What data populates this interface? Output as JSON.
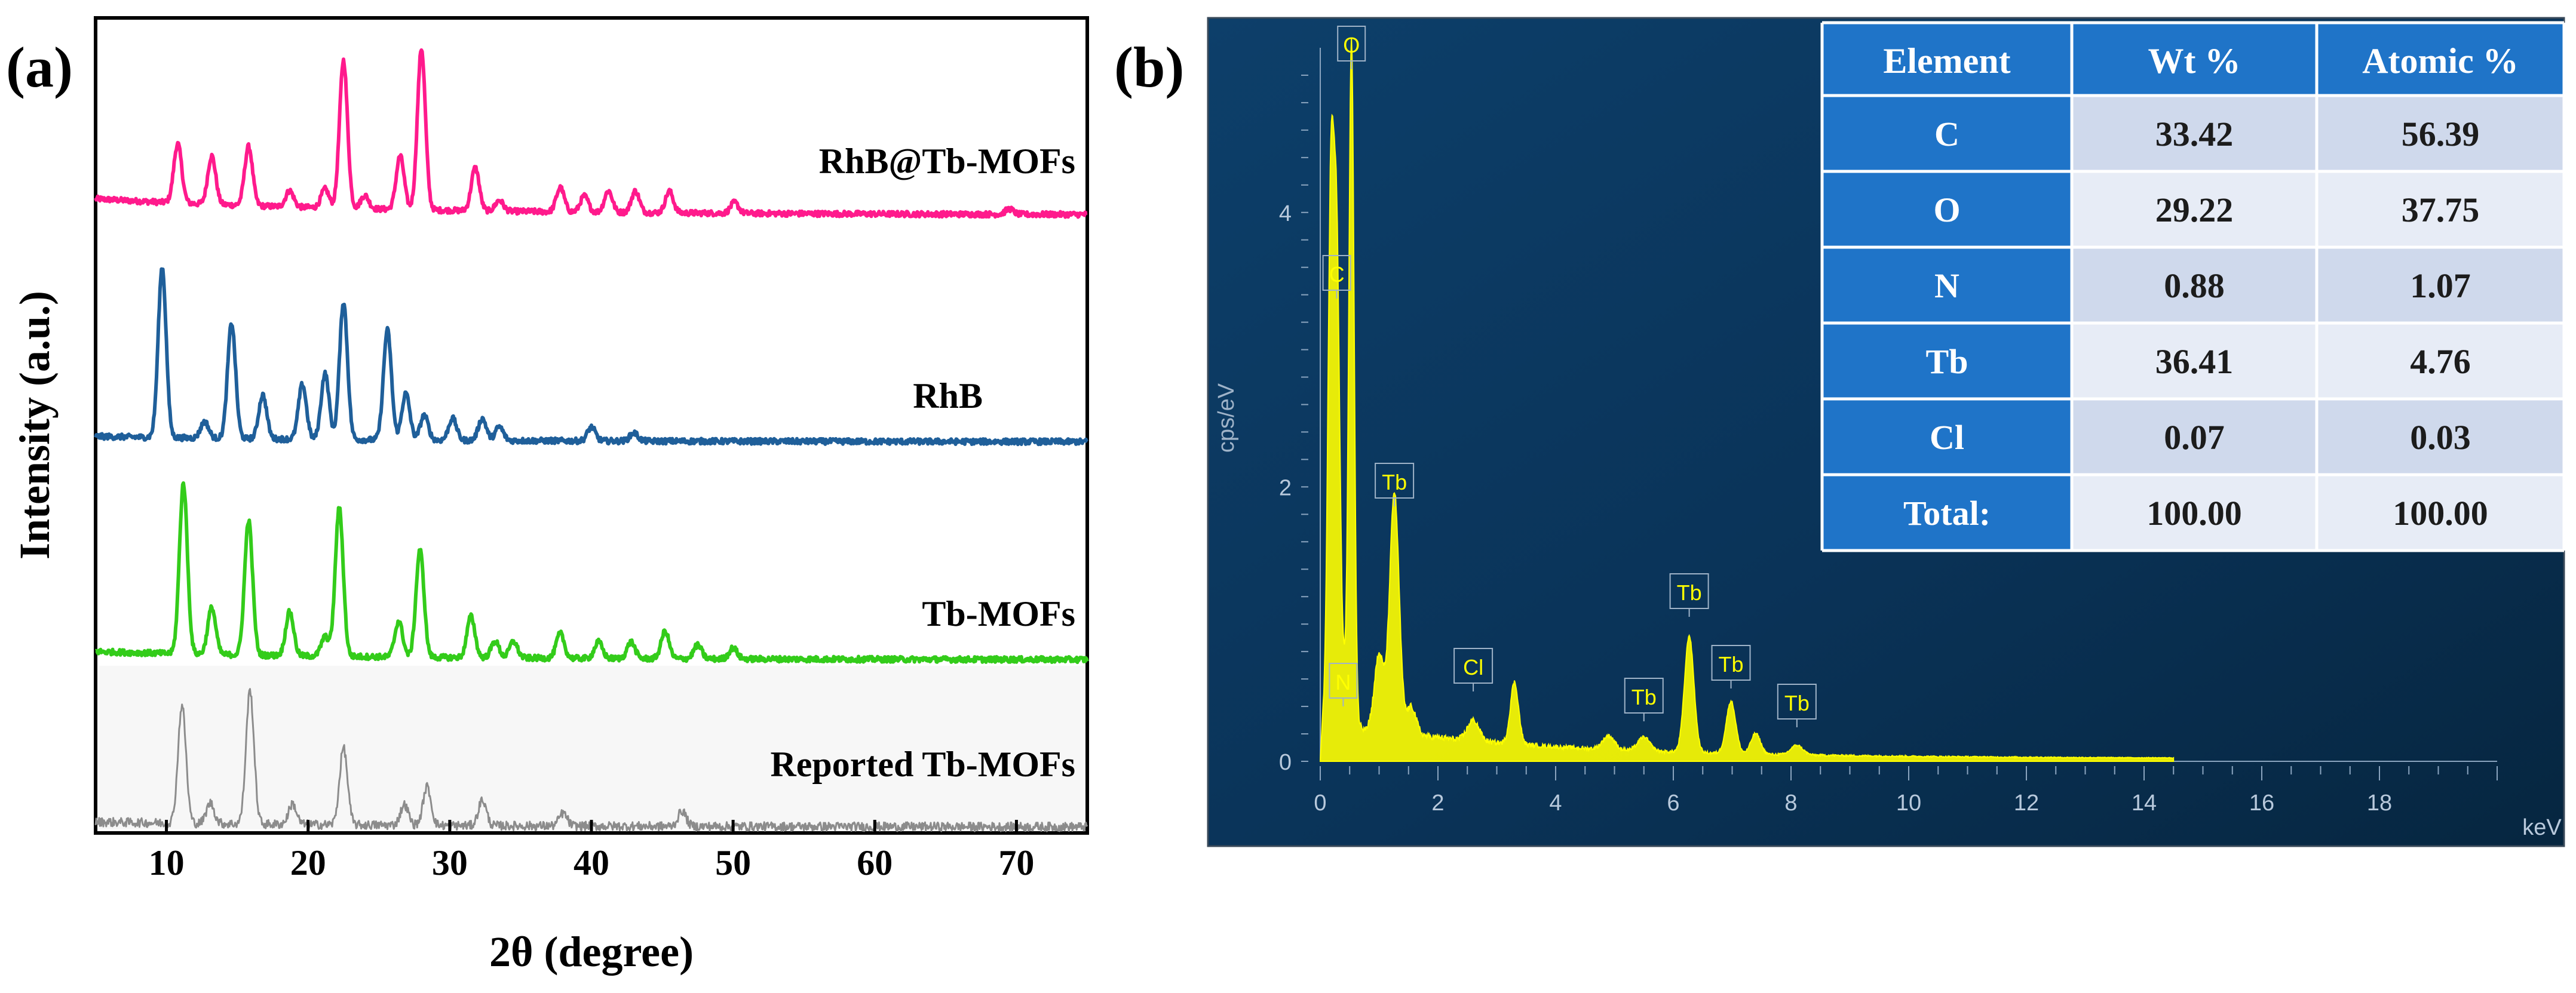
{
  "panel_a": {
    "label": "(a)"
  },
  "panel_b": {
    "label": "(b)"
  },
  "chart_data": [
    {
      "type": "line",
      "title": "",
      "xlabel": "2θ (degree)",
      "ylabel": "Intensity (a.u.)",
      "xlim": [
        5,
        75
      ],
      "xticks": [
        10,
        20,
        30,
        40,
        50,
        60,
        70
      ],
      "yticks": [],
      "series": [
        {
          "name": "RhB@Tb-MOFs",
          "color": "#ff1a8c",
          "baseline": 0.06,
          "peaks": [
            [
              10.8,
              0.22
            ],
            [
              13.2,
              0.18
            ],
            [
              15.8,
              0.22
            ],
            [
              18.7,
              0.06
            ],
            [
              21.2,
              0.07
            ],
            [
              22.5,
              0.55
            ],
            [
              24.0,
              0.05
            ],
            [
              26.5,
              0.2
            ],
            [
              28.0,
              0.6
            ],
            [
              31.8,
              0.16
            ],
            [
              33.5,
              0.04
            ],
            [
              37.8,
              0.09
            ],
            [
              39.5,
              0.06
            ],
            [
              41.2,
              0.08
            ],
            [
              43.1,
              0.08
            ],
            [
              45.5,
              0.08
            ],
            [
              50.1,
              0.04
            ],
            [
              69.5,
              0.02
            ]
          ]
        },
        {
          "name": "RhB",
          "color": "#1f5f9a",
          "baseline": 0.02,
          "peaks": [
            [
              9.7,
              0.62
            ],
            [
              12.7,
              0.06
            ],
            [
              14.6,
              0.42
            ],
            [
              16.8,
              0.16
            ],
            [
              19.6,
              0.2
            ],
            [
              21.2,
              0.24
            ],
            [
              22.5,
              0.5
            ],
            [
              25.6,
              0.4
            ],
            [
              26.9,
              0.17
            ],
            [
              28.2,
              0.09
            ],
            [
              30.2,
              0.08
            ],
            [
              32.3,
              0.08
            ],
            [
              33.5,
              0.05
            ],
            [
              40.0,
              0.05
            ],
            [
              43.0,
              0.03
            ]
          ]
        },
        {
          "name": "Tb-MOFs",
          "color": "#33cc1a",
          "baseline": 0.03,
          "peaks": [
            [
              11.2,
              0.62
            ],
            [
              13.2,
              0.17
            ],
            [
              15.8,
              0.49
            ],
            [
              18.7,
              0.16
            ],
            [
              21.2,
              0.07
            ],
            [
              22.2,
              0.54
            ],
            [
              26.4,
              0.13
            ],
            [
              27.9,
              0.39
            ],
            [
              31.5,
              0.15
            ],
            [
              33.2,
              0.06
            ],
            [
              34.5,
              0.06
            ],
            [
              37.8,
              0.09
            ],
            [
              40.5,
              0.06
            ],
            [
              42.8,
              0.06
            ],
            [
              45.2,
              0.1
            ],
            [
              47.5,
              0.05
            ],
            [
              50.0,
              0.04
            ]
          ]
        },
        {
          "name": "Reported Tb-MOFs",
          "color": "#8c8c8c",
          "baseline": 0.02,
          "peaks": [
            [
              11.1,
              0.46
            ],
            [
              13.1,
              0.08
            ],
            [
              15.9,
              0.52
            ],
            [
              18.9,
              0.08
            ],
            [
              22.5,
              0.3
            ],
            [
              26.8,
              0.08
            ],
            [
              28.4,
              0.15
            ],
            [
              32.3,
              0.1
            ],
            [
              38.0,
              0.05
            ],
            [
              46.4,
              0.06
            ]
          ]
        }
      ]
    },
    {
      "type": "line",
      "title": "",
      "xlabel": "keV",
      "ylabel": "cps/eV",
      "xlim": [
        0,
        20
      ],
      "ylim": [
        0,
        5.2
      ],
      "xticks": [
        0,
        2,
        4,
        6,
        8,
        10,
        12,
        14,
        16,
        18
      ],
      "yticks": [
        0,
        2,
        4
      ],
      "spectrum_color": "#ffff00",
      "peaks": [
        [
          0.18,
          3.8,
          0.05
        ],
        [
          0.28,
          3.3,
          0.05
        ],
        [
          0.39,
          0.35,
          0.05
        ],
        [
          0.53,
          5.0,
          0.045
        ],
        [
          1.0,
          0.55,
          0.08
        ],
        [
          1.26,
          1.75,
          0.08
        ],
        [
          1.55,
          0.2,
          0.08
        ],
        [
          2.6,
          0.15,
          0.1
        ],
        [
          3.3,
          0.45,
          0.07
        ],
        [
          4.9,
          0.1,
          0.1
        ],
        [
          5.5,
          0.1,
          0.1
        ],
        [
          6.27,
          0.85,
          0.08
        ],
        [
          6.98,
          0.38,
          0.08
        ],
        [
          7.4,
          0.15,
          0.08
        ],
        [
          8.1,
          0.07,
          0.1
        ]
      ],
      "peak_labels": [
        {
          "text": "O",
          "energy": 0.53
        },
        {
          "text": "C",
          "energy": 0.28
        },
        {
          "text": "N",
          "energy": 0.39
        },
        {
          "text": "Tb",
          "energy": 1.26
        },
        {
          "text": "Cl",
          "energy": 2.6
        },
        {
          "text": "Tb",
          "energy": 5.5
        },
        {
          "text": "Tb",
          "energy": 6.27
        },
        {
          "text": "Tb",
          "energy": 6.98
        },
        {
          "text": "Tb",
          "energy": 8.1
        }
      ]
    },
    {
      "type": "table",
      "columns": [
        "Element",
        "Wt %",
        "Atomic %"
      ],
      "rows": [
        [
          "C",
          "33.42",
          "56.39"
        ],
        [
          "O",
          "29.22",
          "37.75"
        ],
        [
          "N",
          "0.88",
          "1.07"
        ],
        [
          "Tb",
          "36.41",
          "4.76"
        ],
        [
          "Cl",
          "0.07",
          "0.03"
        ],
        [
          "Total:",
          "100.00",
          "100.00"
        ]
      ]
    }
  ]
}
